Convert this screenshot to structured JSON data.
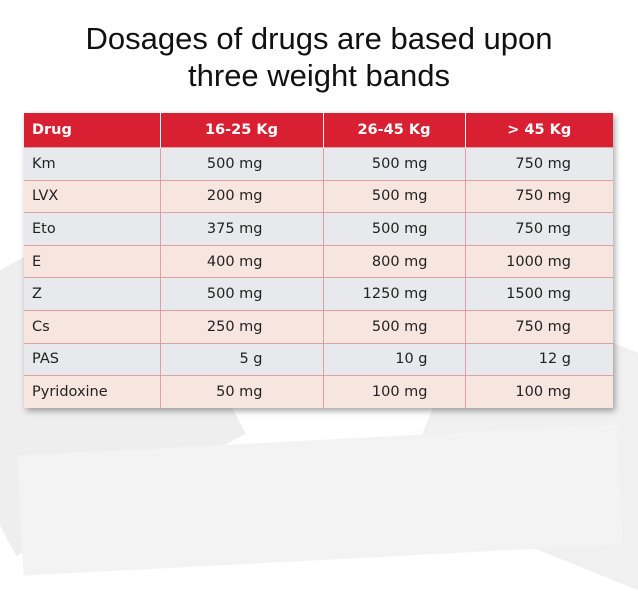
{
  "slide": {
    "title_line1": "Dosages of drugs are based upon",
    "title_line2": "three weight bands"
  },
  "table": {
    "headers": [
      "Drug",
      "16-25 Kg",
      "26-45 Kg",
      "> 45 Kg"
    ],
    "rows": [
      [
        "Km",
        "500 mg",
        "500 mg",
        "750 mg"
      ],
      [
        "LVX",
        "200 mg",
        "500 mg",
        "750 mg"
      ],
      [
        "Eto",
        "375 mg",
        "500 mg",
        "750 mg"
      ],
      [
        "E",
        "400 mg",
        "800 mg",
        "1000 mg"
      ],
      [
        "Z",
        "500 mg",
        "1250 mg",
        "1500 mg"
      ],
      [
        "Cs",
        "250 mg",
        "500 mg",
        "750 mg"
      ],
      [
        "PAS",
        "5 g",
        "10 g",
        "12 g"
      ],
      [
        "Pyridoxine",
        "50 mg",
        "100 mg",
        "100 mg"
      ]
    ]
  },
  "colors": {
    "header_bg": "#d92032",
    "row_gray": "#e8e9ec",
    "row_peach": "#f7e6e0"
  }
}
